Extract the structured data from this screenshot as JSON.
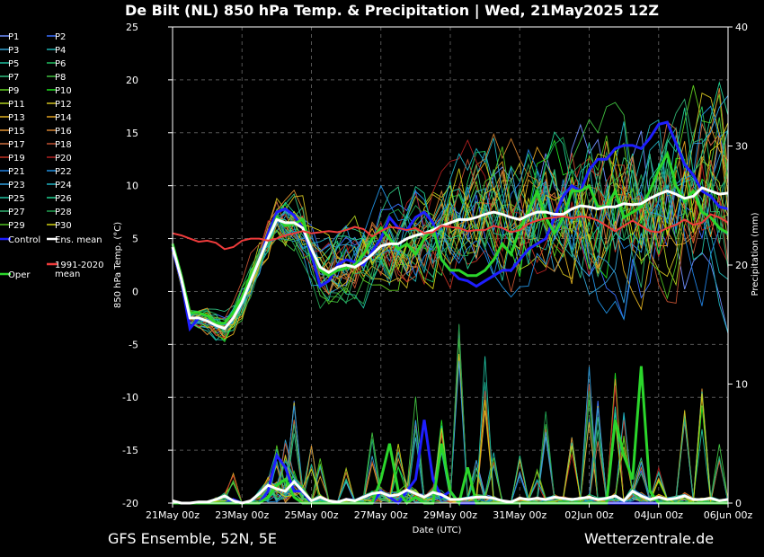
{
  "chart_data": {
    "type": "line",
    "title": "De Bilt  (NL)  850 hPa Temp. & Precipitation | Wed, 21May2025 12Z",
    "xlabel": "Date (UTC)",
    "ylabel": "850 hPa Temp. (°C)",
    "y2label": "Precipitation (mm)",
    "footer_left": "GFS Ensemble, 52N, 5E",
    "footer_right": "Wetterzentrale.de",
    "ylim": [
      -20,
      25
    ],
    "y2lim": [
      0,
      40
    ],
    "yticks": [
      "25",
      "20",
      "15",
      "10",
      "5",
      "0",
      "-5",
      "-10",
      "-15",
      "-20"
    ],
    "y2ticks": [
      "40",
      "30",
      "20",
      "10",
      "0"
    ],
    "xlim_days": [
      0,
      16
    ],
    "xticks": [
      "21May 00z",
      "23May 00z",
      "25May 00z",
      "27May 00z",
      "29May 00z",
      "31May 00z",
      "02Jun 00z",
      "04Jun 00z",
      "06Jun 00z"
    ],
    "grid": true,
    "legend_position": "left-outside",
    "legend": {
      "perturbations": [
        "P1",
        "P2",
        "P3",
        "P4",
        "P5",
        "P6",
        "P7",
        "P8",
        "P9",
        "P10",
        "P11",
        "P12",
        "P13",
        "P14",
        "P15",
        "P16",
        "P17",
        "P18",
        "P19",
        "P20",
        "P21",
        "P22",
        "P23",
        "P24",
        "P25",
        "P26",
        "P27",
        "P28",
        "P29",
        "P30"
      ],
      "control": "Control",
      "ens_mean": "Ens. mean",
      "oper": "Oper",
      "climate": [
        "1991-2020",
        "mean"
      ]
    },
    "member_colors": [
      "#6f8fff",
      "#3a6fff",
      "#33a0d0",
      "#1fb0b0",
      "#1fc0a0",
      "#20c060",
      "#30c080",
      "#40c040",
      "#60d020",
      "#20e020",
      "#b0d020",
      "#d0c020",
      "#e0b020",
      "#e0a020",
      "#e09030",
      "#d08030",
      "#d07040",
      "#c05030",
      "#c03020",
      "#b02020",
      "#2080e0",
      "#2090e0",
      "#30a0e0",
      "#20b0c0",
      "#20c0a0",
      "#20d090",
      "#30b070",
      "#20a050",
      "#50c020",
      "#d0d010"
    ],
    "temp_series": [
      {
        "name": "Control",
        "color": "#1e1eff",
        "width": 3,
        "x": [
          0,
          0.25,
          0.5,
          0.75,
          1,
          1.25,
          1.5,
          1.75,
          2,
          2.25,
          2.5,
          2.75,
          3,
          3.25,
          3.5,
          3.75,
          4,
          4.25,
          4.5,
          4.75,
          5,
          5.25,
          5.5,
          5.75,
          6,
          6.25,
          6.5,
          6.75,
          7,
          7.25,
          7.5,
          7.75,
          8,
          8.25,
          8.5,
          8.75,
          9,
          9.25,
          9.5,
          9.75,
          10,
          10.25,
          10.5,
          10.75,
          11,
          11.25,
          11.5,
          11.75,
          12,
          12.25,
          12.5,
          12.75,
          13,
          13.25,
          13.5,
          13.75,
          14,
          14.25,
          14.5,
          14.75,
          15,
          15.25,
          15.5,
          15.75,
          16
        ],
        "y": [
          4,
          1,
          -3.5,
          -2.5,
          -2.8,
          -3.2,
          -3.5,
          -2.5,
          -1,
          1,
          3,
          5.5,
          7.5,
          7.8,
          7.2,
          6,
          3.5,
          0.5,
          1,
          2.5,
          3,
          2.8,
          2.5,
          3.8,
          5,
          7,
          6,
          5.8,
          7,
          7.5,
          6.5,
          3,
          2,
          1.2,
          1,
          0.5,
          1,
          1.5,
          2,
          2,
          3,
          4,
          4.5,
          5,
          7,
          9,
          10,
          9.5,
          11.5,
          12.5,
          12.5,
          13.5,
          13.8,
          13.8,
          13.5,
          14.5,
          15.8,
          16,
          14,
          12,
          11,
          9.5,
          9,
          8,
          7.8
        ]
      },
      {
        "name": "Oper",
        "color": "#2bd62b",
        "width": 3,
        "x": [
          0,
          0.25,
          0.5,
          0.75,
          1,
          1.25,
          1.5,
          1.75,
          2,
          2.25,
          2.5,
          2.75,
          3,
          3.25,
          3.5,
          3.75,
          4,
          4.25,
          4.5,
          4.75,
          5,
          5.25,
          5.5,
          5.75,
          6,
          6.25,
          6.5,
          6.75,
          7,
          7.25,
          7.5,
          7.75,
          8,
          8.25,
          8.5,
          8.75,
          9,
          9.25,
          9.5,
          9.75,
          10,
          10.25,
          10.5,
          10.75,
          11,
          11.25,
          11.5,
          11.75,
          12,
          12.25,
          12.5,
          12.75,
          13,
          13.25,
          13.5,
          13.75,
          14,
          14.25,
          14.5,
          14.75,
          15,
          15.25,
          15.5,
          15.75,
          16
        ],
        "y": [
          4.5,
          1.5,
          -2,
          -2,
          -2.3,
          -3,
          -3,
          -2,
          -0.5,
          1.5,
          3,
          5,
          7,
          6.2,
          6.4,
          6.8,
          4,
          2,
          1.5,
          2,
          2.2,
          2.5,
          3.5,
          5,
          6,
          5,
          4,
          4.5,
          3.5,
          5,
          6,
          3,
          2,
          2,
          1.5,
          1.5,
          2,
          3,
          4.5,
          3.5,
          6,
          7.5,
          9.5,
          7,
          5.5,
          7,
          9.5,
          9.5,
          10,
          8,
          8,
          9.5,
          7,
          7.5,
          8,
          9.5,
          11.5,
          13,
          10,
          8.5,
          9.5,
          7.5,
          7,
          6,
          5.5
        ]
      },
      {
        "name": "Ens. mean",
        "color": "#ffffff",
        "width": 3,
        "x": [
          0,
          0.25,
          0.5,
          0.75,
          1,
          1.25,
          1.5,
          1.75,
          2,
          2.25,
          2.5,
          2.75,
          3,
          3.25,
          3.5,
          3.75,
          4,
          4.25,
          4.5,
          4.75,
          5,
          5.25,
          5.5,
          5.75,
          6,
          6.25,
          6.5,
          6.75,
          7,
          7.25,
          7.5,
          7.75,
          8,
          8.25,
          8.5,
          8.75,
          9,
          9.25,
          9.5,
          9.75,
          10,
          10.25,
          10.5,
          10.75,
          11,
          11.25,
          11.5,
          11.75,
          12,
          12.25,
          12.5,
          12.75,
          13,
          13.25,
          13.5,
          13.75,
          14,
          14.25,
          14.5,
          14.75,
          15,
          15.25,
          15.5,
          15.75,
          16
        ],
        "y": [
          4.2,
          1.2,
          -2.5,
          -2.5,
          -2.8,
          -3.2,
          -3.5,
          -2.5,
          -1,
          1,
          3,
          5,
          6.8,
          6.5,
          6.5,
          6,
          4,
          2.3,
          1.8,
          2.3,
          2.5,
          2.3,
          2.8,
          3.5,
          4.3,
          4.5,
          4.5,
          5,
          5.3,
          5.5,
          5.8,
          6.2,
          6.5,
          6.8,
          6.8,
          7,
          7.3,
          7.5,
          7.3,
          7,
          6.8,
          7.2,
          7.5,
          7.5,
          7.3,
          7.3,
          7.8,
          8.1,
          8,
          7.8,
          8,
          8,
          8.3,
          8.2,
          8.3,
          8.8,
          9.2,
          9.5,
          9.2,
          8.8,
          9,
          9.8,
          9.5,
          9.2,
          9.3
        ]
      },
      {
        "name": "1991-2020 mean",
        "color": "#ef3b3b",
        "width": 2,
        "x": [
          0,
          0.25,
          0.5,
          0.75,
          1,
          1.25,
          1.5,
          1.75,
          2,
          2.25,
          2.5,
          2.75,
          3,
          3.25,
          3.5,
          3.75,
          4,
          4.25,
          4.5,
          4.75,
          5,
          5.25,
          5.5,
          5.75,
          6,
          6.25,
          6.5,
          6.75,
          7,
          7.25,
          7.5,
          7.75,
          8,
          8.25,
          8.5,
          8.75,
          9,
          9.25,
          9.5,
          9.75,
          10,
          10.25,
          10.5,
          10.75,
          11,
          11.25,
          11.5,
          11.75,
          12,
          12.25,
          12.5,
          12.75,
          13,
          13.25,
          13.5,
          13.75,
          14,
          14.25,
          14.5,
          14.75,
          15,
          15.25,
          15.5,
          15.75,
          16
        ],
        "y": [
          5.5,
          5.3,
          5,
          4.7,
          4.8,
          4.6,
          4,
          4.2,
          4.8,
          5,
          5,
          4.8,
          5,
          5.3,
          5.5,
          5.7,
          5.5,
          5.6,
          5.7,
          5.6,
          5.8,
          6.1,
          5.9,
          5.2,
          5.7,
          6.1,
          6,
          5.8,
          6,
          5.5,
          5.6,
          6.2,
          6.1,
          6,
          5.7,
          5.8,
          5.8,
          6.2,
          6,
          5.6,
          5.8,
          6.4,
          6.7,
          6.9,
          7,
          7.1,
          6.9,
          7.1,
          7,
          6.7,
          6.2,
          5.7,
          6.2,
          6.7,
          6.2,
          5.7,
          5.6,
          6,
          6.3,
          6.8,
          6.3,
          6.5,
          7.3,
          7,
          6.5
        ]
      }
    ],
    "precip_series": [
      {
        "name": "Control",
        "color": "#1e1eff",
        "width": 3,
        "x": [
          0,
          0.25,
          0.5,
          0.75,
          1,
          1.25,
          1.5,
          1.75,
          2,
          2.25,
          2.5,
          2.75,
          3,
          3.25,
          3.5,
          3.75,
          4,
          4.25,
          4.5,
          4.75,
          5,
          5.25,
          5.5,
          5.75,
          6,
          6.25,
          6.5,
          6.75,
          7,
          7.25,
          7.5,
          7.75,
          8,
          8.25,
          8.5,
          8.75,
          9,
          9.25,
          9.5,
          9.75,
          10,
          10.25,
          10.5,
          10.75,
          11,
          11.25,
          11.5,
          11.75,
          12,
          12.25,
          12.5,
          12.75,
          13,
          13.25,
          13.5,
          13.75,
          14,
          14.25,
          14.5,
          14.75,
          15,
          15.25,
          15.5,
          15.75,
          16
        ],
        "y": [
          0,
          0,
          0,
          0,
          0,
          0,
          0,
          0.3,
          0,
          0,
          0,
          1,
          4,
          3,
          1,
          1,
          0,
          0,
          0,
          0,
          0,
          0,
          0,
          0,
          1,
          0.5,
          0,
          1,
          2,
          7,
          2,
          0.5,
          1,
          0,
          0,
          0,
          0,
          0,
          0,
          0,
          0,
          0,
          0,
          0,
          0,
          0,
          0,
          0,
          0,
          0,
          0,
          0,
          0,
          0,
          0,
          0,
          0,
          0,
          0,
          0,
          0,
          0,
          0,
          0,
          0
        ]
      },
      {
        "name": "Oper",
        "color": "#2bd62b",
        "width": 3,
        "x": [
          0,
          0.25,
          0.5,
          0.75,
          1,
          1.25,
          1.5,
          1.75,
          2,
          2.25,
          2.5,
          2.75,
          3,
          3.25,
          3.5,
          3.75,
          4,
          4.25,
          4.5,
          4.75,
          5,
          5.25,
          5.5,
          5.75,
          6,
          6.25,
          6.5,
          6.75,
          7,
          7.25,
          7.5,
          7.75,
          8,
          8.25,
          8.5,
          8.75,
          9,
          9.25,
          9.5,
          9.75,
          10,
          10.25,
          10.5,
          10.75,
          11,
          11.25,
          11.5,
          11.75,
          12,
          12.25,
          12.5,
          12.75,
          13,
          13.25,
          13.5,
          13.75,
          14,
          14.25,
          14.5,
          14.75,
          15,
          15.25,
          15.5,
          15.75,
          16
        ],
        "y": [
          0,
          0,
          0,
          0,
          0,
          0,
          0,
          0,
          0,
          0,
          0,
          0.5,
          1.5,
          2,
          0.5,
          0,
          0,
          0,
          0,
          0,
          0,
          0,
          0,
          0,
          2,
          5,
          1,
          0,
          0.5,
          0,
          0,
          5,
          1,
          0,
          3,
          0,
          0,
          0,
          0,
          0,
          0,
          0,
          0,
          0,
          0,
          0,
          0,
          0,
          0,
          0,
          0,
          7,
          4,
          2,
          11.5,
          1,
          0,
          0,
          0,
          0,
          0,
          0,
          0,
          0,
          0
        ]
      },
      {
        "name": "Ens. mean",
        "color": "#ffffff",
        "width": 3,
        "x": [
          0,
          0.25,
          0.5,
          0.75,
          1,
          1.25,
          1.5,
          1.75,
          2,
          2.25,
          2.5,
          2.75,
          3,
          3.25,
          3.5,
          3.75,
          4,
          4.25,
          4.5,
          4.75,
          5,
          5.25,
          5.5,
          5.75,
          6,
          6.25,
          6.5,
          6.75,
          7,
          7.25,
          7.5,
          7.75,
          8,
          8.25,
          8.5,
          8.75,
          9,
          9.25,
          9.5,
          9.75,
          10,
          10.25,
          10.5,
          10.75,
          11,
          11.25,
          11.5,
          11.75,
          12,
          12.25,
          12.5,
          12.75,
          13,
          13.25,
          13.5,
          13.75,
          14,
          14.25,
          14.5,
          14.75,
          15,
          15.25,
          15.5,
          15.75,
          16
        ],
        "y": [
          0.2,
          0,
          0,
          0.1,
          0.1,
          0.3,
          0.6,
          0.2,
          0,
          0.2,
          0.8,
          1.5,
          1.2,
          1,
          1.8,
          1,
          0.2,
          0.5,
          0.2,
          0.1,
          0.3,
          0.2,
          0.5,
          0.8,
          0.9,
          0.6,
          0.7,
          1.1,
          0.8,
          0.5,
          0.9,
          0.7,
          0.3,
          0.3,
          0.4,
          0.5,
          0.5,
          0.4,
          0.2,
          0.1,
          0.4,
          0.3,
          0.4,
          0.3,
          0.5,
          0.4,
          0.3,
          0.4,
          0.5,
          0.3,
          0.4,
          0.6,
          0.2,
          1,
          0.6,
          0.3,
          0.5,
          0.3,
          0.4,
          0.6,
          0.3,
          0.3,
          0.4,
          0.2,
          0.3
        ]
      }
    ],
    "precip_member_spikes": [
      {
        "x": 1.75,
        "y": 2.5
      },
      {
        "x": 3,
        "y": 5
      },
      {
        "x": 3.25,
        "y": 5.5
      },
      {
        "x": 3.5,
        "y": 9
      },
      {
        "x": 4,
        "y": 5
      },
      {
        "x": 4.25,
        "y": 4
      },
      {
        "x": 5,
        "y": 3
      },
      {
        "x": 5.75,
        "y": 6
      },
      {
        "x": 6.5,
        "y": 5
      },
      {
        "x": 7,
        "y": 10
      },
      {
        "x": 7.75,
        "y": 7
      },
      {
        "x": 8.25,
        "y": 15.5
      },
      {
        "x": 8.75,
        "y": 4
      },
      {
        "x": 9,
        "y": 13
      },
      {
        "x": 9.25,
        "y": 5
      },
      {
        "x": 10,
        "y": 4
      },
      {
        "x": 10.5,
        "y": 3
      },
      {
        "x": 10.75,
        "y": 8
      },
      {
        "x": 11.5,
        "y": 6
      },
      {
        "x": 12,
        "y": 11.5
      },
      {
        "x": 12.25,
        "y": 9
      },
      {
        "x": 12.75,
        "y": 11
      },
      {
        "x": 13,
        "y": 8
      },
      {
        "x": 13.5,
        "y": 4
      },
      {
        "x": 14,
        "y": 3
      },
      {
        "x": 14.75,
        "y": 8
      },
      {
        "x": 15.25,
        "y": 10
      },
      {
        "x": 15.75,
        "y": 5
      }
    ]
  }
}
